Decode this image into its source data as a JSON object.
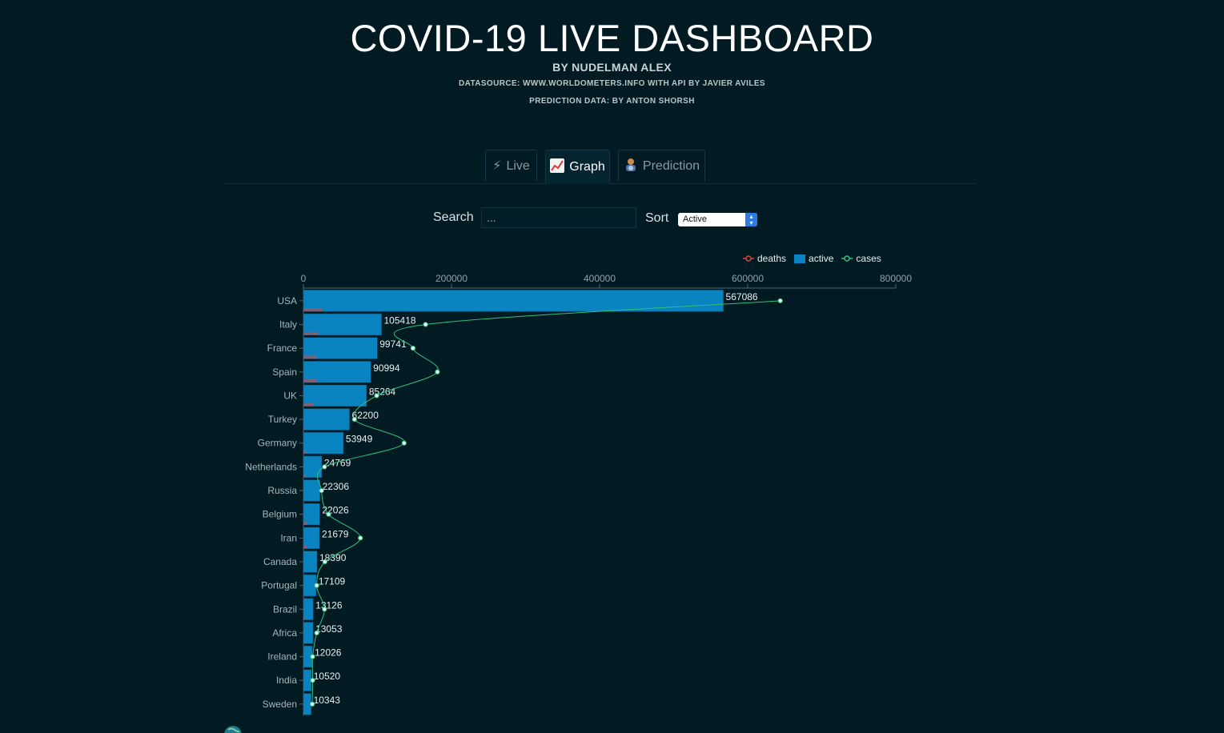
{
  "header": {
    "title": "COVID-19 LIVE DASHBOARD",
    "byline": "BY NUDELMAN ALEX",
    "datasource": "DATASOURCE: WWW.WORLDOMETERS.INFO WITH API BY JAVIER AVILES",
    "prediction": "PREDICTION DATA: BY ANTON SHORSH"
  },
  "tabs": [
    {
      "label": "Live",
      "icon": "lightning-icon",
      "active": false
    },
    {
      "label": "Graph",
      "icon": "chart-icon",
      "active": true
    },
    {
      "label": "Prediction",
      "icon": "fortune-teller-icon",
      "active": false
    }
  ],
  "controls": {
    "search_label": "Search",
    "search_placeholder": "...",
    "sort_label": "Sort",
    "sort_value": "Active"
  },
  "colors": {
    "deaths": "#e0453a",
    "active": "#0a84c0",
    "cases": "#2ec27e",
    "background": "#021a22"
  },
  "chart_data": {
    "type": "bar",
    "orientation": "horizontal",
    "legend": [
      "deaths",
      "active",
      "cases"
    ],
    "legend_position": "top-right",
    "xlim": [
      0,
      800000
    ],
    "xticks": [
      "0",
      "200000",
      "400000",
      "600000",
      "800000"
    ],
    "categories": [
      "USA",
      "Italy",
      "France",
      "Spain",
      "UK",
      "Turkey",
      "Germany",
      "Netherlands",
      "Russia",
      "Belgium",
      "Iran",
      "Canada",
      "Portugal",
      "Brazil",
      "Africa",
      "Ireland",
      "India",
      "Sweden"
    ],
    "series": [
      {
        "name": "active",
        "kind": "bar",
        "values": [
          567086,
          105418,
          99741,
          90994,
          85264,
          62200,
          53949,
          24769,
          22306,
          22026,
          21679,
          18390,
          17109,
          13126,
          13053,
          12026,
          10520,
          10343
        ]
      },
      {
        "name": "deaths",
        "kind": "bar",
        "values": [
          26000,
          20500,
          18000,
          18300,
          14000,
          1600,
          3500,
          3300,
          200,
          4800,
          4800,
          1000,
          600,
          1900,
          50,
          500,
          500,
          1400
        ]
      },
      {
        "name": "cases",
        "kind": "line",
        "values": [
          644000,
          165000,
          148000,
          181000,
          99000,
          69000,
          136000,
          28500,
          24500,
          34000,
          77000,
          29000,
          18000,
          28500,
          18000,
          12500,
          12500,
          12000
        ]
      }
    ]
  }
}
